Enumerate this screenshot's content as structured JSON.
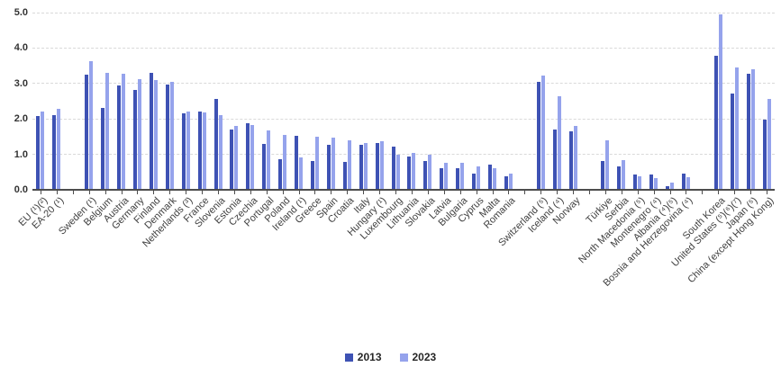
{
  "chart_data": {
    "type": "bar",
    "title": "",
    "ylabel": "",
    "xlabel": "",
    "ylim": [
      0,
      5
    ],
    "ytick_labels": [
      "0.0",
      "1.0",
      "2.0",
      "3.0",
      "4.0",
      "5.0"
    ],
    "grid": "horizontal-dashed",
    "legend_position": "bottom-center",
    "bar_colors": {
      "2013": "#3e52b4",
      "2023": "#95a3ec"
    },
    "categories": [
      "EU (¹)(²)",
      "EA-20 (¹)",
      "Sweden (¹)",
      "Belgium",
      "Austria",
      "Germany",
      "Finland",
      "Denmark",
      "Netherlands (³)",
      "France",
      "Slovenia",
      "Estonia",
      "Czechia",
      "Portugal",
      "Poland",
      "Ireland (¹)",
      "Greece",
      "Spain",
      "Croatia",
      "Italy",
      "Hungary (¹)",
      "Luxembourg",
      "Lithuania",
      "Slovakia",
      "Latvia",
      "Bulgaria",
      "Cyprus",
      "Malta",
      "Romania",
      "Switzerland (⁵)",
      "Iceland (⁴)",
      "Norway",
      "Türkiye",
      "Serbia",
      "North Macedonia (⁵)",
      "Montenegro (⁴)",
      "Albania (⁴)(⁵)",
      "Bosnia and Herzegovina (⁴)",
      "South Korea",
      "United States (⁵)(⁶)(⁷)",
      "Japan (⁵)",
      "China (except Hong Kong)"
    ],
    "series": [
      {
        "name": "2013",
        "values": [
          2.08,
          2.1,
          3.26,
          2.31,
          2.95,
          2.82,
          3.29,
          2.97,
          2.15,
          2.22,
          2.57,
          1.71,
          1.88,
          1.3,
          0.87,
          1.52,
          0.81,
          1.26,
          0.78,
          1.26,
          1.33,
          1.22,
          0.94,
          0.8,
          0.61,
          0.62,
          0.46,
          0.7,
          0.38,
          3.05,
          1.7,
          1.65,
          0.8,
          0.65,
          0.44,
          0.42,
          0.1,
          0.45,
          3.78,
          2.72,
          3.28,
          1.97
        ]
      },
      {
        "name": "2023",
        "values": [
          2.22,
          2.28,
          3.63,
          3.3,
          3.27,
          3.11,
          3.09,
          3.05,
          2.2,
          2.18,
          2.11,
          1.81,
          1.82,
          1.68,
          1.56,
          0.92,
          1.49,
          1.48,
          1.4,
          1.33,
          1.36,
          1.0,
          1.05,
          1.0,
          0.75,
          0.77,
          0.67,
          0.62,
          0.46,
          3.23,
          2.63,
          1.8,
          1.4,
          0.85,
          0.37,
          0.34,
          0.2,
          0.36,
          4.96,
          3.46,
          3.41,
          2.57
        ]
      }
    ],
    "separator_after_indices": [
      1,
      28,
      31,
      37
    ],
    "legend": [
      {
        "label": "2013",
        "color": "#3e52b4"
      },
      {
        "label": "2023",
        "color": "#95a3ec"
      }
    ]
  }
}
